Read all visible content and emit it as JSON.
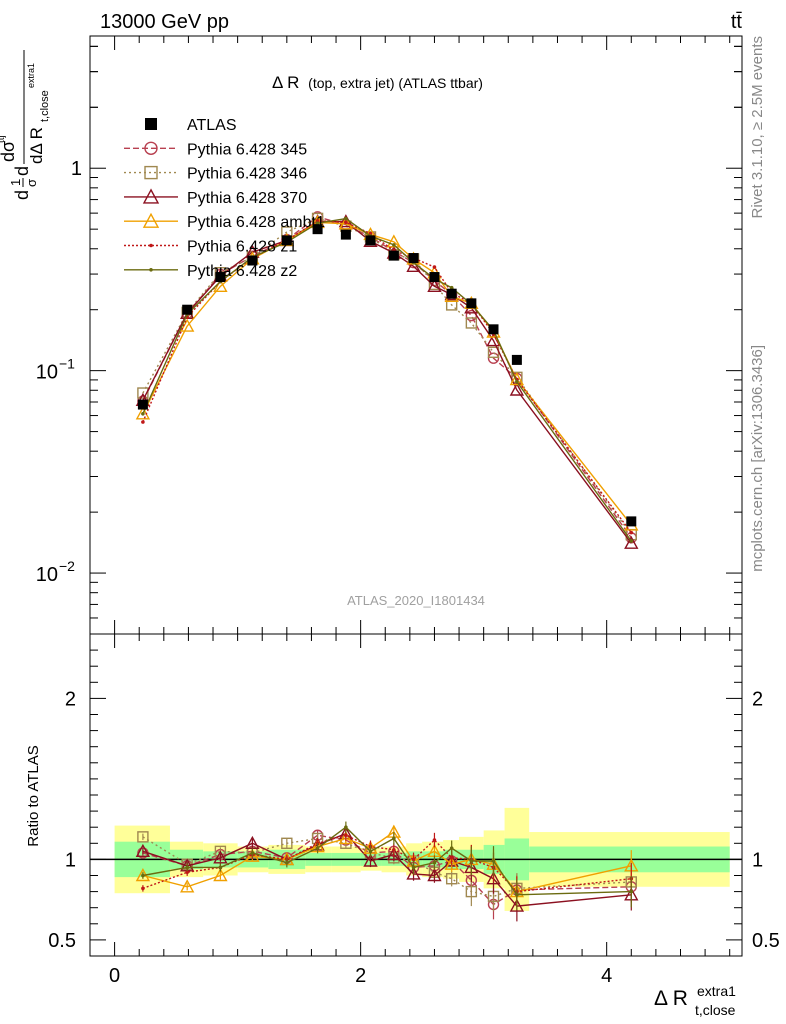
{
  "header": {
    "left": "13000 GeV pp",
    "right": "tt̄"
  },
  "side_labels": {
    "rivet": "Rivet 3.1.10, ≥ 2.5M events",
    "mcplots": "mcplots.cern.ch [arXiv:1306.3436]"
  },
  "chart_data": {
    "type": "line",
    "title": "Δ R (top, extra jet) (ATLAS ttbar)",
    "title_main": "Δ R",
    "title_sub": "(top, extra jet) (ATLAS ttbar)",
    "analysis_label": "ATLAS_2020_I1801434",
    "xlabel": "Δ R",
    "xlabel_sup": "extra1",
    "xlabel_sub": "t,close",
    "ylabel_ratio": "Ratio to ATLAS",
    "xlim": [
      -0.2,
      5.1
    ],
    "ylim_main": [
      0.005,
      4.5
    ],
    "ylim_ratio": [
      0.4,
      2.4
    ],
    "yscale_main": "log",
    "x_ticks": [
      "0",
      "2",
      "4"
    ],
    "main_y_ticks": {
      "decade_1": "1",
      "decade_2_base": "10",
      "decade_2_exp": "−1",
      "decade_3_base": "10",
      "decade_3_exp": "−2"
    },
    "ratio_y_ticks": [
      "0.5",
      "1",
      "2"
    ],
    "ratio_y_values": [
      0.5,
      1,
      2
    ],
    "legend_position": "top-left",
    "x": [
      0.23,
      0.59,
      0.86,
      1.12,
      1.4,
      1.65,
      1.88,
      2.08,
      2.27,
      2.43,
      2.6,
      2.74,
      2.9,
      3.08,
      3.27,
      4.2
    ],
    "bins": [
      0.0,
      0.45,
      0.72,
      1.0,
      1.25,
      1.55,
      1.76,
      2.0,
      2.17,
      2.37,
      2.5,
      2.67,
      2.8,
      3.0,
      3.17,
      3.37,
      5.0
    ],
    "data": {
      "name": "ATLAS",
      "values": [
        0.068,
        0.2,
        0.29,
        0.35,
        0.44,
        0.5,
        0.47,
        0.44,
        0.37,
        0.36,
        0.29,
        0.24,
        0.215,
        0.16,
        0.113,
        0.018
      ]
    },
    "stat_band": [
      0.11,
      0.06,
      0.05,
      0.05,
      0.06,
      0.04,
      0.04,
      0.04,
      0.04,
      0.05,
      0.05,
      0.06,
      0.06,
      0.09,
      0.13,
      0.08
    ],
    "total_band": [
      0.21,
      0.11,
      0.1,
      0.08,
      0.09,
      0.08,
      0.08,
      0.07,
      0.08,
      0.1,
      0.11,
      0.12,
      0.14,
      0.18,
      0.32,
      0.17
    ],
    "series": [
      {
        "name": "Pythia 6.428 345",
        "color": "#b84050",
        "dash": "6,3",
        "marker": "circle",
        "ratios": [
          1.04,
          0.96,
          1.03,
          1.05,
          1.01,
          1.15,
          1.12,
          1.04,
          1.05,
          0.95,
          0.96,
          0.99,
          0.87,
          0.72,
          0.81,
          0.83
        ]
      },
      {
        "name": "Pythia 6.428 346",
        "color": "#a08850",
        "dash": "2,3",
        "marker": "square",
        "ratios": [
          1.14,
          0.97,
          1.05,
          1.04,
          1.1,
          1.13,
          1.1,
          1.04,
          1.01,
          0.99,
          0.92,
          0.88,
          0.8,
          0.77,
          0.82,
          0.86
        ]
      },
      {
        "name": "Pythia 6.428 370",
        "color": "#8b1020",
        "dash": "",
        "marker": "triangle",
        "ratios": [
          1.05,
          0.96,
          1.01,
          1.1,
          1.0,
          1.09,
          1.16,
          0.99,
          1.03,
          0.91,
          0.9,
          0.99,
          0.95,
          0.88,
          0.71,
          0.78
        ]
      },
      {
        "name": "Pythia 6.428 ambt1",
        "color": "#f0a000",
        "dash": "",
        "marker": "triangle",
        "ratios": [
          0.9,
          0.83,
          0.9,
          1.02,
          1.0,
          1.08,
          1.13,
          1.07,
          1.17,
          0.99,
          1.05,
          0.97,
          1.0,
          0.97,
          0.8,
          0.96
        ]
      },
      {
        "name": "Pythia 6.428 z1",
        "color": "#c01818",
        "dash": "2,2",
        "marker": "dot",
        "ratios": [
          0.82,
          0.92,
          0.95,
          1.03,
          1.0,
          1.1,
          1.15,
          1.08,
          1.06,
          1.0,
          1.12,
          1.01,
          1.0,
          0.95,
          0.8,
          0.88
        ]
      },
      {
        "name": "Pythia 6.428 z2",
        "color": "#6b6b10",
        "dash": "",
        "marker": "dot",
        "ratios": [
          0.9,
          0.95,
          0.95,
          1.04,
          0.98,
          1.07,
          1.2,
          1.05,
          1.13,
          0.95,
          0.98,
          1.07,
          0.99,
          0.99,
          0.78,
          0.8
        ]
      }
    ]
  }
}
